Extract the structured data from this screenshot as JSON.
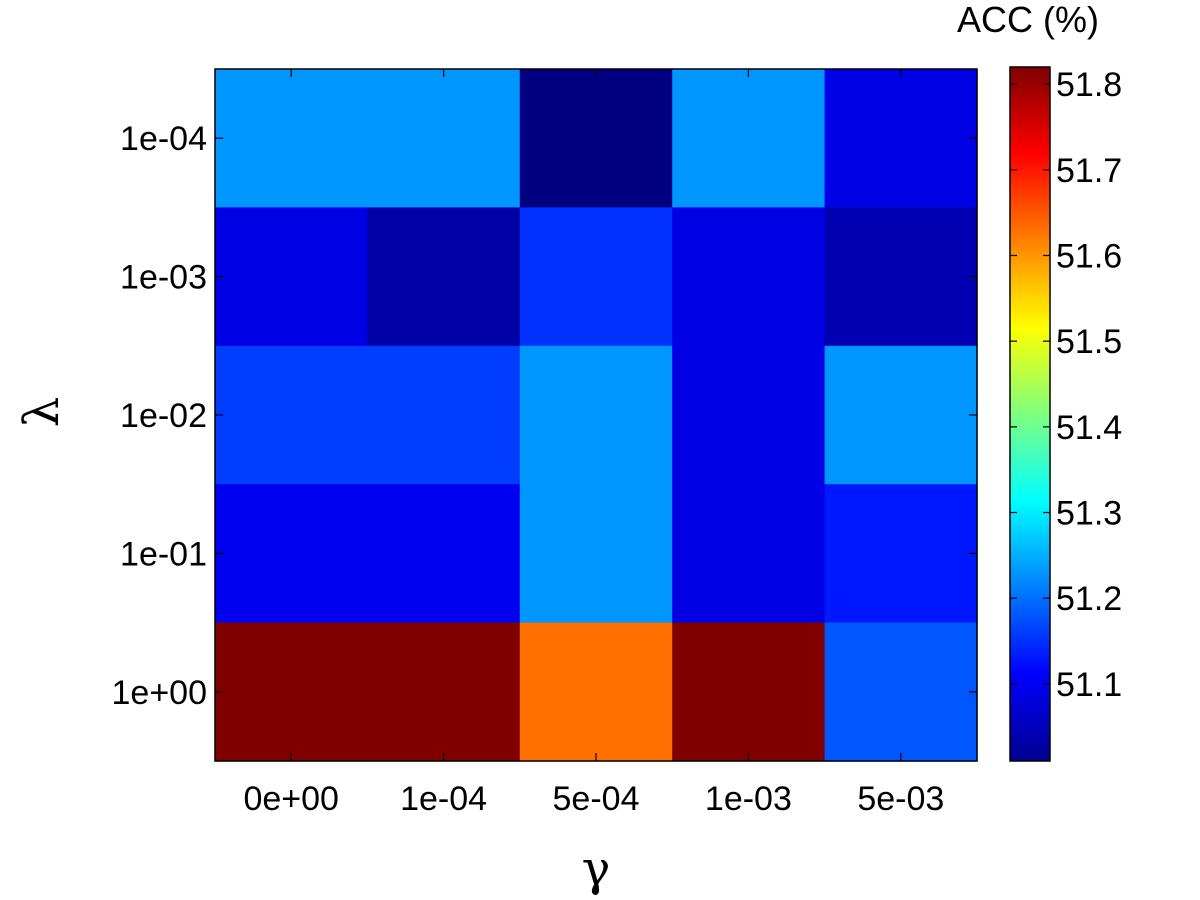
{
  "chart_data": {
    "type": "heatmap",
    "title": "",
    "xlabel": "γ",
    "ylabel": "λ",
    "x_categories": [
      "0e+00",
      "1e-04",
      "5e-04",
      "1e-03",
      "5e-03"
    ],
    "y_categories": [
      "1e-04",
      "1e-03",
      "1e-02",
      "1e-01",
      "1e+00"
    ],
    "values": [
      [
        51.23,
        51.23,
        51.01,
        51.23,
        51.09
      ],
      [
        51.09,
        51.04,
        51.15,
        51.09,
        51.05
      ],
      [
        51.16,
        51.16,
        51.23,
        51.09,
        51.23
      ],
      [
        51.1,
        51.1,
        51.23,
        51.09,
        51.13
      ],
      [
        51.82,
        51.82,
        51.63,
        51.82,
        51.18
      ]
    ],
    "colormap": "jet",
    "colorbar": {
      "title": "ACC (%)",
      "min": 51.01,
      "max": 51.82,
      "ticks": [
        "51.1",
        "51.2",
        "51.3",
        "51.4",
        "51.5",
        "51.6",
        "51.7",
        "51.8"
      ]
    }
  }
}
